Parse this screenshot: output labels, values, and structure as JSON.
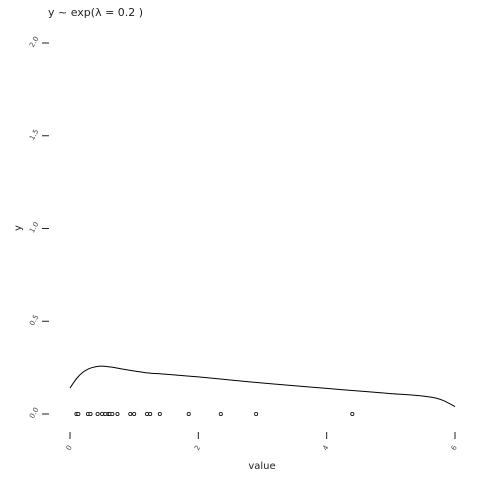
{
  "chart_data": {
    "type": "line",
    "title": "y ~ exp(λ = 0.2 )",
    "xlabel": "value",
    "ylabel": "y",
    "xlim": [
      0,
      6
    ],
    "ylim": [
      0,
      2
    ],
    "x_ticks": [
      0,
      2,
      4,
      6
    ],
    "x_tick_labels": [
      "0",
      "2",
      "4",
      "6"
    ],
    "y_ticks": [
      0,
      0.5,
      1.0,
      1.5,
      2.0
    ],
    "y_tick_labels": [
      "0.0",
      "0.5",
      "1.0",
      "1.5",
      "2.0"
    ],
    "grid": false,
    "series": [
      {
        "kind": "density",
        "x": [
          0,
          0.1,
          0.2,
          0.3,
          0.4,
          0.5,
          0.6,
          0.7,
          0.8,
          1.0,
          1.2,
          1.5,
          2.0,
          2.5,
          3.0,
          3.5,
          4.0,
          4.5,
          5.0,
          5.3,
          5.6,
          5.8,
          6.0
        ],
        "y": [
          0.14,
          0.19,
          0.225,
          0.245,
          0.255,
          0.258,
          0.255,
          0.25,
          0.243,
          0.232,
          0.222,
          0.214,
          0.2,
          0.183,
          0.167,
          0.152,
          0.138,
          0.124,
          0.11,
          0.103,
          0.092,
          0.075,
          0.04
        ]
      },
      {
        "kind": "rug",
        "x": [
          0.1,
          0.13,
          0.28,
          0.32,
          0.43,
          0.5,
          0.55,
          0.6,
          0.62,
          0.66,
          0.74,
          0.94,
          1.0,
          1.2,
          1.25,
          1.4,
          1.85,
          2.35,
          2.9,
          4.4
        ],
        "y": [
          0,
          0,
          0,
          0,
          0,
          0,
          0,
          0,
          0,
          0,
          0,
          0,
          0,
          0,
          0,
          0,
          0,
          0,
          0,
          0
        ]
      }
    ]
  }
}
